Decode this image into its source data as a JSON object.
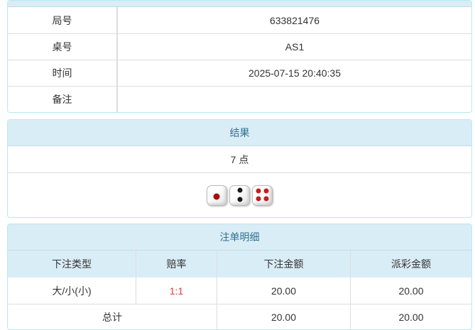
{
  "colors": {
    "panel_border": "#bce8f1",
    "heading_bg": "#d9edf7",
    "heading_text": "#31708f",
    "odds_red": "#e4393c",
    "body_text": "#333333"
  },
  "info": {
    "rows": [
      {
        "label": "局号",
        "value": "633821476"
      },
      {
        "label": "桌号",
        "value": "AS1"
      },
      {
        "label": "时间",
        "value": "2025-07-15 20:40:35"
      },
      {
        "label": "备注",
        "value": ""
      }
    ]
  },
  "result": {
    "title": "结果",
    "points": "7 点",
    "dice": [
      {
        "value": 1,
        "color": "#a50f0f",
        "pip_size": 9,
        "pips": [
          [
            48,
            56
          ]
        ]
      },
      {
        "value": 2,
        "color": "#1a1a1a",
        "pip_size": 7,
        "pips": [
          [
            50,
            24
          ],
          [
            50,
            72
          ]
        ]
      },
      {
        "value": 4,
        "color": "#c02020",
        "pip_size": 7,
        "pips": [
          [
            30,
            28
          ],
          [
            70,
            28
          ],
          [
            30,
            70
          ],
          [
            70,
            70
          ]
        ]
      }
    ]
  },
  "bets": {
    "title": "注单明细",
    "columns": [
      "下注类型",
      "赔率",
      "下注金额",
      "派彩金额"
    ],
    "rows": [
      {
        "type": "大/小(小)",
        "odds": "1:1",
        "bet_amount": "20.00",
        "payout_amount": "20.00"
      }
    ],
    "total": {
      "label": "总计",
      "bet_amount": "20.00",
      "payout_amount": "20.00"
    }
  }
}
